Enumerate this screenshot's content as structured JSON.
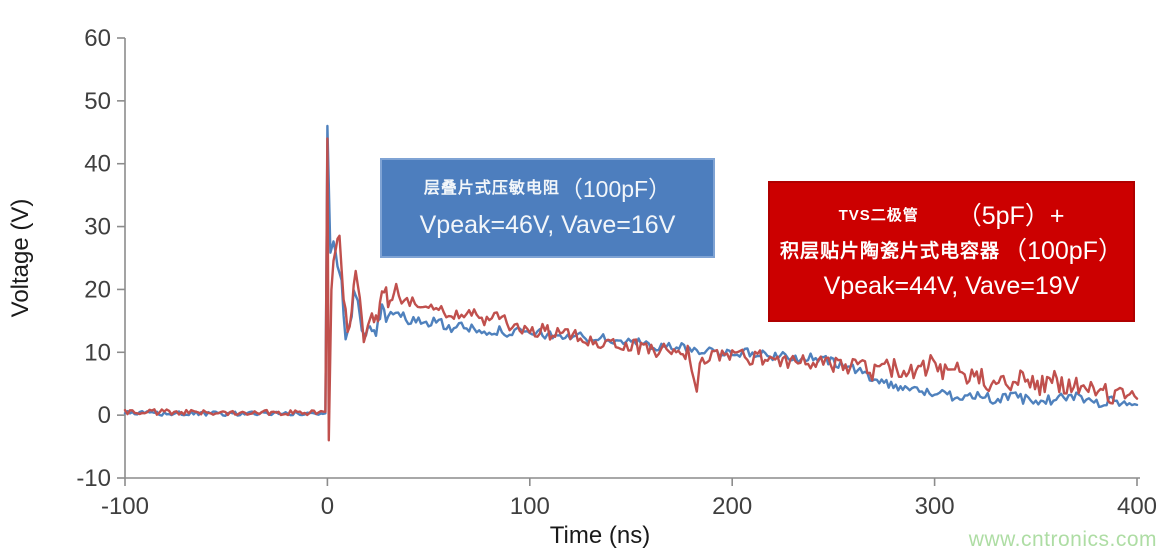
{
  "watermark": {
    "text": "www.cntronics.com",
    "color": "#aedda4"
  },
  "annotations": {
    "varistor_box": {
      "bg": "#4d7ebe",
      "line1_cn": "层叠片式压敏电阻",
      "line1_cap": "（100pF）",
      "line2": "Vpeak=46V, Vave=16V"
    },
    "tvs_box": {
      "bg": "#cc0000",
      "line1_cn": "TVS二极管",
      "line1_cap": "（5pF）+",
      "line2_cn": "积层贴片陶瓷片式电容器",
      "line2_cap": "（100pF）",
      "line3": "Vpeak=44V, Vave=19V"
    }
  },
  "chart_data": {
    "type": "line",
    "title": "",
    "xlabel": "Time (ns)",
    "ylabel": "Voltage (V)",
    "xlim": [
      -100,
      400
    ],
    "ylim": [
      -10,
      60
    ],
    "xticks": [
      -100,
      0,
      100,
      200,
      300,
      400
    ],
    "yticks": [
      -10,
      0,
      10,
      20,
      30,
      40,
      50,
      60
    ],
    "grid": false,
    "legend_position": "none (series identified by colored annotation boxes)",
    "axis_color": "#8c8c8c",
    "tick_label_color": "#3f3f3f",
    "noise_note": "anchors are [time_ns, voltage_V, local_noise_amplitude_V]; traces are noisy surge waveforms",
    "series": [
      {
        "name": "层叠片式压敏电阻（100pF）",
        "color": "#4f81bd",
        "vpeak": 46,
        "vave": 16,
        "anchors": [
          [
            -100,
            0.3,
            0.35
          ],
          [
            -60,
            0.2,
            0.35
          ],
          [
            -30,
            0.3,
            0.35
          ],
          [
            -10,
            0.2,
            0.35
          ],
          [
            -1,
            0.2,
            0.15
          ],
          [
            0,
            46,
            0
          ],
          [
            1.5,
            26,
            1.5
          ],
          [
            3,
            29,
            1.5
          ],
          [
            5,
            25,
            1.5
          ],
          [
            7,
            21,
            1.5
          ],
          [
            9,
            13.5,
            1.5
          ],
          [
            11,
            15,
            1.5
          ],
          [
            13,
            18.5,
            1.5
          ],
          [
            15,
            19.5,
            1.3
          ],
          [
            17,
            12.5,
            1.3
          ],
          [
            19,
            13.5,
            1.3
          ],
          [
            21,
            14.5,
            1.2
          ],
          [
            24,
            13,
            1.2
          ],
          [
            27,
            16.5,
            1.2
          ],
          [
            30,
            15.5,
            1
          ],
          [
            35,
            16,
            1
          ],
          [
            40,
            15,
            1
          ],
          [
            45,
            15.5,
            0.9
          ],
          [
            50,
            14.5,
            0.9
          ],
          [
            55,
            15,
            0.9
          ],
          [
            60,
            14,
            0.9
          ],
          [
            70,
            13.8,
            0.8
          ],
          [
            80,
            13.5,
            0.8
          ],
          [
            90,
            13.2,
            0.8
          ],
          [
            100,
            13,
            0.8
          ],
          [
            110,
            12.8,
            0.8
          ],
          [
            120,
            12.5,
            0.8
          ],
          [
            130,
            12.3,
            0.8
          ],
          [
            140,
            12,
            0.8
          ],
          [
            150,
            11.6,
            0.8
          ],
          [
            160,
            11.2,
            0.8
          ],
          [
            170,
            10.8,
            0.8
          ],
          [
            180,
            10.5,
            0.8
          ],
          [
            190,
            10.2,
            0.8
          ],
          [
            200,
            10,
            0.8
          ],
          [
            210,
            9.8,
            0.8
          ],
          [
            220,
            9.5,
            0.8
          ],
          [
            230,
            9.2,
            0.8
          ],
          [
            240,
            9,
            0.8
          ],
          [
            250,
            8.5,
            0.8
          ],
          [
            256,
            7.8,
            0.7
          ],
          [
            262,
            7,
            0.7
          ],
          [
            268,
            6.2,
            0.7
          ],
          [
            275,
            5.2,
            0.7
          ],
          [
            282,
            4.6,
            0.7
          ],
          [
            290,
            4,
            0.7
          ],
          [
            300,
            3.5,
            0.7
          ],
          [
            310,
            3,
            0.8
          ],
          [
            320,
            3.3,
            0.8
          ],
          [
            330,
            2.5,
            0.8
          ],
          [
            340,
            2.9,
            0.8
          ],
          [
            350,
            2,
            0.8
          ],
          [
            360,
            2.6,
            0.8
          ],
          [
            370,
            3,
            0.8
          ],
          [
            380,
            2,
            0.8
          ],
          [
            390,
            2.3,
            0.8
          ],
          [
            400,
            1.6,
            0.5
          ]
        ]
      },
      {
        "name": "TVS二极管（5pF）+ 积层贴片陶瓷片式电容器（100pF）",
        "color": "#c0504d",
        "vpeak": 44,
        "vave": 19,
        "anchors": [
          [
            -100,
            0.5,
            0.45
          ],
          [
            -60,
            0.4,
            0.45
          ],
          [
            -30,
            0.5,
            0.45
          ],
          [
            -10,
            0.4,
            0.45
          ],
          [
            -1,
            0.4,
            0.2
          ],
          [
            0,
            44,
            0
          ],
          [
            0.7,
            -4,
            0
          ],
          [
            2,
            20,
            1.5
          ],
          [
            4,
            27,
            1.5
          ],
          [
            6,
            29,
            1.5
          ],
          [
            8,
            18,
            1.8
          ],
          [
            10,
            14,
            1.8
          ],
          [
            12,
            17,
            1.8
          ],
          [
            14,
            21.5,
            1.6
          ],
          [
            16,
            18,
            1.6
          ],
          [
            18,
            13,
            1.6
          ],
          [
            20,
            15.5,
            1.5
          ],
          [
            22,
            16.5,
            1.5
          ],
          [
            25,
            14.5,
            1.5
          ],
          [
            28,
            21,
            1.5
          ],
          [
            31,
            17,
            1.4
          ],
          [
            34,
            19.5,
            1.4
          ],
          [
            38,
            18,
            1.3
          ],
          [
            42,
            19,
            1.3
          ],
          [
            46,
            18,
            1.2
          ],
          [
            50,
            17.5,
            1.2
          ],
          [
            55,
            17,
            1.2
          ],
          [
            60,
            16.5,
            1.2
          ],
          [
            65,
            16,
            1.2
          ],
          [
            70,
            16.3,
            1.2
          ],
          [
            75,
            15.5,
            1.2
          ],
          [
            80,
            15,
            1.2
          ],
          [
            85,
            15.2,
            1.2
          ],
          [
            90,
            14.5,
            1.2
          ],
          [
            95,
            14,
            1.2
          ],
          [
            100,
            13.8,
            1.2
          ],
          [
            105,
            13.4,
            1.2
          ],
          [
            110,
            13.1,
            1.2
          ],
          [
            115,
            12.9,
            1.2
          ],
          [
            120,
            12.6,
            1.2
          ],
          [
            130,
            12,
            1.2
          ],
          [
            140,
            11.4,
            1.2
          ],
          [
            150,
            11,
            1.2
          ],
          [
            160,
            10.5,
            1.2
          ],
          [
            170,
            10.2,
            1.2
          ],
          [
            178,
            10,
            1.2
          ],
          [
            181,
            6,
            0.8
          ],
          [
            182.5,
            4,
            0.3
          ],
          [
            184,
            8,
            0.8
          ],
          [
            190,
            9.8,
            1.2
          ],
          [
            200,
            9.5,
            1.2
          ],
          [
            210,
            9.2,
            1.2
          ],
          [
            220,
            9,
            1.3
          ],
          [
            230,
            8.7,
            1.3
          ],
          [
            240,
            8.4,
            1.3
          ],
          [
            250,
            8.2,
            1.4
          ],
          [
            256,
            7,
            1.4
          ],
          [
            262,
            8.5,
            1.4
          ],
          [
            268,
            6.5,
            1.5
          ],
          [
            274,
            8,
            1.5
          ],
          [
            280,
            7.5,
            1.6
          ],
          [
            286,
            6,
            1.6
          ],
          [
            292,
            7.5,
            1.6
          ],
          [
            298,
            8,
            1.6
          ],
          [
            304,
            6.2,
            1.7
          ],
          [
            310,
            7,
            1.7
          ],
          [
            316,
            5.6,
            1.7
          ],
          [
            322,
            6.6,
            1.7
          ],
          [
            328,
            5,
            1.7
          ],
          [
            334,
            6.5,
            1.7
          ],
          [
            340,
            5,
            1.7
          ],
          [
            346,
            6,
            1.7
          ],
          [
            352,
            4.6,
            1.7
          ],
          [
            358,
            5.6,
            1.7
          ],
          [
            364,
            4.2,
            1.7
          ],
          [
            370,
            5,
            1.7
          ],
          [
            376,
            3.6,
            1.6
          ],
          [
            382,
            4.6,
            1.6
          ],
          [
            388,
            2.6,
            1.4
          ],
          [
            394,
            3.6,
            1.4
          ],
          [
            400,
            2,
            1
          ]
        ]
      }
    ]
  }
}
